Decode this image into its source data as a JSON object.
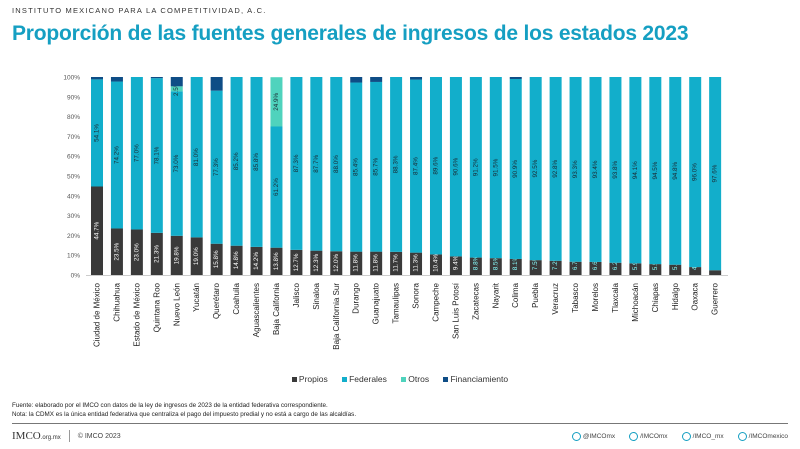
{
  "header": {
    "org": "INSTITUTO MEXICANO PARA LA COMPETITIVIDAD, A.C.",
    "title": "Proporción de las fuentes generales de ingresos de los estados 2023"
  },
  "chart_data": {
    "type": "bar",
    "stacked": true,
    "title": "Proporción de las fuentes generales de ingresos de los estados 2023",
    "xlabel": "",
    "ylabel": "",
    "ylim": [
      0,
      100
    ],
    "yticks": [
      "0%",
      "10%",
      "20%",
      "30%",
      "40%",
      "50%",
      "60%",
      "70%",
      "80%",
      "90%",
      "100%"
    ],
    "grid": false,
    "legend_position": "bottom",
    "categories": [
      "Ciudad de México",
      "Chihuahua",
      "Estado de México",
      "Quintana Roo",
      "Nuevo León",
      "Yucatán",
      "Querétaro",
      "Coahuila",
      "Aguascalientes",
      "Baja California",
      "Jalisco",
      "Sinaloa",
      "Baja California Sur",
      "Durango",
      "Guanajuato",
      "Tamaulipas",
      "Sonora",
      "Campeche",
      "San Luis Potosí",
      "Zacatecas",
      "Nayarit",
      "Colima",
      "Puebla",
      "Veracruz",
      "Tabasco",
      "Morelos",
      "Tlaxcala",
      "Michoacán",
      "Chiapas",
      "Hidalgo",
      "Oaxaca",
      "Guerrero"
    ],
    "series": [
      {
        "name": "Propios",
        "color": "#3a3a3a",
        "labeled": true,
        "values": [
          44.7,
          23.5,
          23.0,
          21.3,
          19.8,
          19.0,
          15.8,
          14.8,
          14.2,
          13.8,
          12.7,
          12.3,
          12.0,
          11.8,
          11.8,
          11.7,
          11.3,
          10.4,
          9.4,
          8.8,
          8.5,
          8.1,
          7.5,
          7.2,
          6.7,
          6.6,
          6.2,
          5.9,
          5.5,
          5.2,
          4.0,
          2.4
        ]
      },
      {
        "name": "Federales",
        "color": "#12aecb",
        "labeled": true,
        "values": [
          54.1,
          74.2,
          77.0,
          78.1,
          73.0,
          81.0,
          77.3,
          85.2,
          85.8,
          61.2,
          87.3,
          87.7,
          88.0,
          85.4,
          85.7,
          88.3,
          87.4,
          89.6,
          90.6,
          91.2,
          91.5,
          90.9,
          92.5,
          92.8,
          93.3,
          93.4,
          93.8,
          94.1,
          94.5,
          94.8,
          96.0,
          97.6
        ]
      },
      {
        "name": "Otros",
        "color": "#4fd3bd",
        "labeled": true,
        "values": [
          0,
          0,
          0,
          0,
          2.5,
          0,
          0,
          0,
          0,
          24.9,
          0,
          0,
          0,
          0,
          0,
          0,
          0,
          0,
          0,
          0,
          0,
          0,
          0,
          0,
          0,
          0,
          0,
          0,
          0,
          0,
          0,
          0
        ]
      },
      {
        "name": "Financiamiento",
        "color": "#0e4d86",
        "labeled": false,
        "values": [
          1.2,
          2.3,
          0,
          0.6,
          4.7,
          0,
          6.9,
          0,
          0,
          0,
          0,
          0,
          0,
          2.8,
          2.5,
          0,
          1.3,
          0,
          0,
          0,
          0,
          1.0,
          0,
          0,
          0,
          0,
          0,
          0,
          0,
          0,
          0,
          0
        ]
      }
    ]
  },
  "notes": {
    "source": "Fuente: elaborado por el IMCO con datos de la ley de ingresos de 2023 de la entidad federativa correspondiente.",
    "note": "Nota: la CDMX es la única entidad federativa que centraliza el pago del impuesto predial y no está a cargo de las alcaldías."
  },
  "footer": {
    "logo": "IMCO",
    "logo_domain": ".org.mx",
    "copyright": "© IMCO 2023",
    "social": [
      {
        "icon": "twitter-icon",
        "label": "@IMCOmx"
      },
      {
        "icon": "facebook-icon",
        "label": "/IMCOmx"
      },
      {
        "icon": "instagram-icon",
        "label": "/IMCO_mx"
      },
      {
        "icon": "youtube-icon",
        "label": "/IMCOmexico"
      }
    ]
  }
}
